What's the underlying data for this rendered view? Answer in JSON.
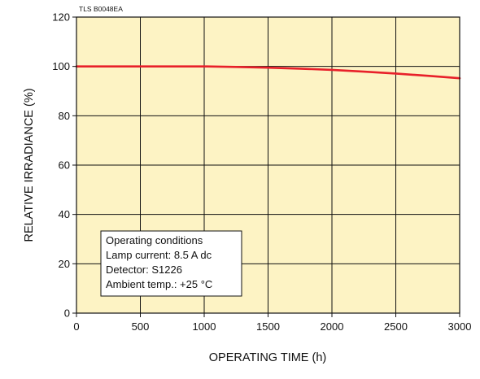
{
  "chart_data": {
    "type": "line",
    "title": "",
    "figure_code": "TLS B0048EA",
    "xlabel": "OPERATING TIME (h)",
    "ylabel": "RELATIVE IRRADIANCE (%)",
    "xlim": [
      0,
      3000
    ],
    "ylim": [
      0,
      120
    ],
    "x_ticks": [
      "0",
      "500",
      "1000",
      "1500",
      "2000",
      "2500",
      "3000"
    ],
    "y_ticks": [
      "0",
      "20",
      "40",
      "60",
      "80",
      "100",
      "120"
    ],
    "grid": true,
    "series": [
      {
        "color": "#e8202a",
        "x": [
          0,
          250,
          500,
          750,
          1000,
          1250,
          1500,
          1750,
          2000,
          2250,
          2500,
          2750,
          3000
        ],
        "y": [
          100,
          100,
          100,
          100,
          100,
          99.8,
          99.5,
          99.1,
          98.6,
          97.9,
          97.1,
          96.2,
          95.2
        ]
      }
    ],
    "annotation_lines": [
      "Operating conditions",
      "Lamp current: 8.5 A dc",
      "Detector: S1226",
      "Ambient temp.: +25 °C"
    ],
    "colors": {
      "plot_background": "#fdf3c4",
      "grid": "#111111",
      "line": "#e8202a"
    }
  }
}
